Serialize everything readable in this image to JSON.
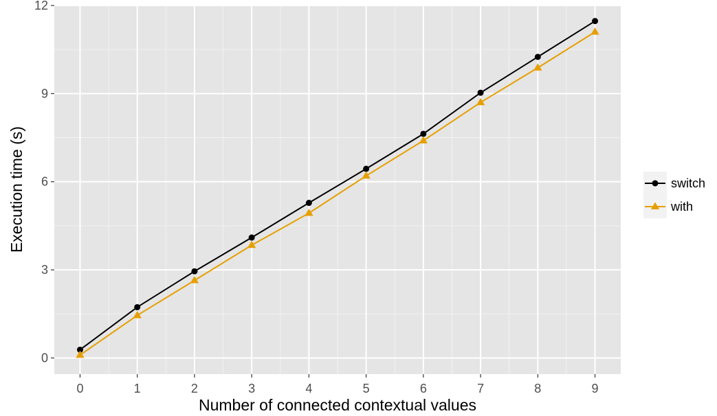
{
  "chart_data": {
    "type": "line",
    "title": "",
    "xlabel": "Number of connected contextual values",
    "ylabel": "Execution time (s)",
    "x": [
      0,
      1,
      2,
      3,
      4,
      5,
      6,
      7,
      8,
      9
    ],
    "xticks": [
      "0",
      "1",
      "2",
      "3",
      "4",
      "5",
      "6",
      "7",
      "8",
      "9"
    ],
    "yticks": [
      "0",
      "3",
      "6",
      "9",
      "12"
    ],
    "xlim": [
      -0.45,
      9.45
    ],
    "ylim": [
      -0.55,
      12.0
    ],
    "grid": true,
    "legend_position": "right",
    "series": [
      {
        "name": "switch",
        "color": "#000000",
        "marker": "circle",
        "values": [
          0.28,
          1.73,
          2.95,
          4.1,
          5.28,
          6.44,
          7.63,
          9.03,
          10.25,
          11.47
        ]
      },
      {
        "name": "with",
        "color": "#E69F00",
        "marker": "triangle",
        "values": [
          0.1,
          1.45,
          2.64,
          3.84,
          4.93,
          6.2,
          7.4,
          8.7,
          9.88,
          11.1
        ]
      }
    ]
  },
  "colors": {
    "panel_background": "#E5E5E5",
    "major_grid": "#FFFFFF",
    "minor_grid": "#F2F2F2",
    "legend_key_background": "#F2F2F2"
  }
}
